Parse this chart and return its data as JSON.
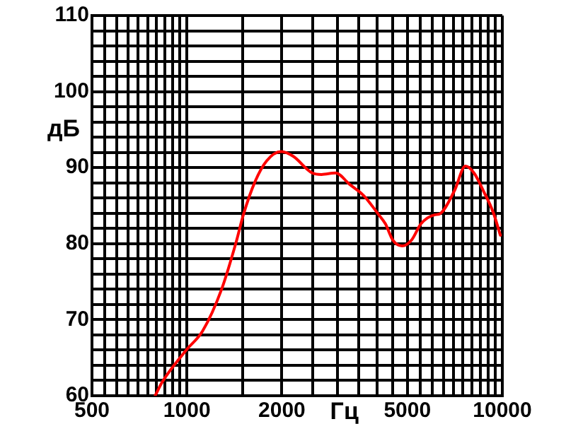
{
  "chart_data": {
    "type": "line",
    "xlabel": "Гц",
    "ylabel": "дБ",
    "log": "x",
    "xlim": [
      500,
      10000
    ],
    "ylim": [
      60,
      110
    ],
    "xticks": [
      500,
      {
        "value": 550,
        "label": null
      },
      {
        "value": 600,
        "label": null
      },
      {
        "value": 650,
        "label": null
      },
      {
        "value": 700,
        "label": null
      },
      {
        "value": 750,
        "label": null
      },
      {
        "value": 800,
        "label": null
      },
      {
        "value": 850,
        "label": null
      },
      {
        "value": 900,
        "label": null
      },
      {
        "value": 950,
        "label": null
      },
      1000,
      {
        "value": 1500,
        "label": null
      },
      2000,
      {
        "value": 2500,
        "label": null
      },
      {
        "value": 3000,
        "label": null
      },
      {
        "value": 3500,
        "label": null
      },
      {
        "value": 4000,
        "label": null
      },
      {
        "value": 4500,
        "label": null
      },
      5000,
      {
        "value": 5500,
        "label": null
      },
      {
        "value": 6000,
        "label": null
      },
      {
        "value": 6500,
        "label": null
      },
      {
        "value": 7000,
        "label": null
      },
      {
        "value": 7500,
        "label": null
      },
      {
        "value": 8000,
        "label": null
      },
      {
        "value": 8500,
        "label": null
      },
      {
        "value": 9000,
        "label": null
      },
      {
        "value": 9500,
        "label": null
      },
      10000
    ],
    "yticks": [
      60,
      {
        "value": 62,
        "label": null
      },
      {
        "value": 64,
        "label": null
      },
      {
        "value": 66,
        "label": null
      },
      {
        "value": 68,
        "label": null
      },
      70,
      {
        "value": 72,
        "label": null
      },
      {
        "value": 74,
        "label": null
      },
      {
        "value": 76,
        "label": null
      },
      {
        "value": 78,
        "label": null
      },
      80,
      {
        "value": 82,
        "label": null
      },
      {
        "value": 84,
        "label": null
      },
      {
        "value": 86,
        "label": null
      },
      {
        "value": 88,
        "label": null
      },
      90,
      {
        "value": 92,
        "label": null
      },
      {
        "value": 94,
        "label": null
      },
      {
        "value": 96,
        "label": null
      },
      {
        "value": 98,
        "label": null
      },
      100,
      {
        "value": 102,
        "label": null
      },
      {
        "value": 104,
        "label": null
      },
      {
        "value": 106,
        "label": null
      },
      {
        "value": 108,
        "label": null
      },
      110
    ],
    "grid": true,
    "legend": false,
    "marker": "none",
    "line_style": "solid",
    "series": [
      {
        "color": "#ff0000",
        "x": [
          793,
          835,
          1000,
          1121,
          1288,
          1430,
          1510,
          1642,
          1791,
          1990,
          2170,
          2495,
          2670,
          2960,
          3280,
          3640,
          4040,
          4260,
          4490,
          4810,
          5160,
          5520,
          6120,
          6320,
          7040,
          7640,
          8130,
          8720,
          9360,
          9860
        ],
        "values": [
          60,
          61.8,
          66.1,
          68.5,
          74,
          80.1,
          83.8,
          88.1,
          90.9,
          92.1,
          91.5,
          89.3,
          89.1,
          89.3,
          87.8,
          86.3,
          83.9,
          82.6,
          80.5,
          79.7,
          80.5,
          82.6,
          83.8,
          83.9,
          86.9,
          90.2,
          89.3,
          86.9,
          84.1,
          81.1
        ]
      }
    ]
  }
}
